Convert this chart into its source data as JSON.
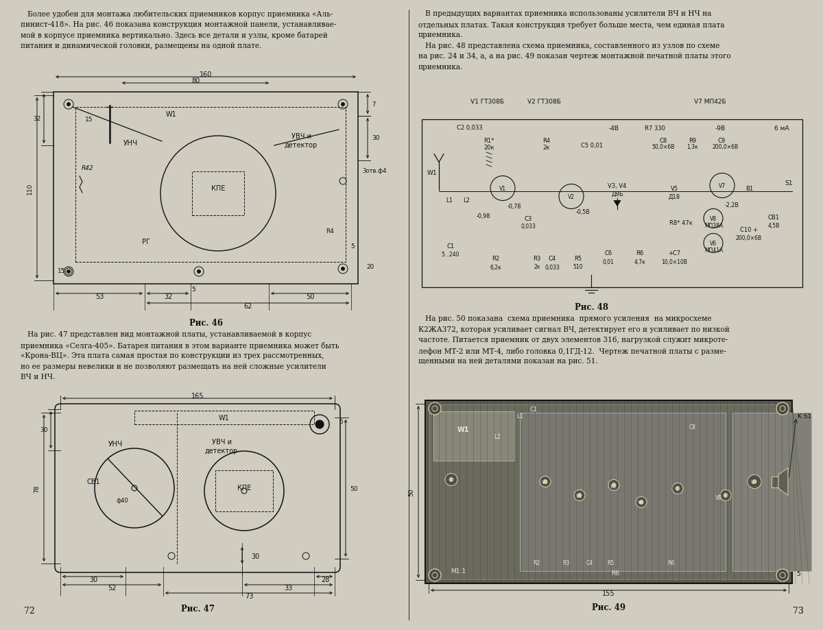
{
  "page_bg": "#d0ccc0",
  "line_color": "#111111",
  "text_color": "#111111",
  "page_num_left": "72",
  "page_num_right": "73",
  "fig46_caption": "Рис. 46",
  "fig47_caption": "Рис. 47",
  "fig48_caption": "Рис. 48",
  "fig49_caption": "Рис. 49",
  "top_text_left": [
    "   Более удобен для монтажа любительских приемников корпус приемника «Аль-",
    "пинист-418». На рис. 46 показана конструкция монтажной панели, устанавливае-",
    "мой в корпусе приемника вертикально. Здесь все детали и узлы, кроме батарей",
    "питания и динамической головки, размещены на одной плате."
  ],
  "top_text_right": [
    "   В предыдущих вариантах приемника использованы усилители ВЧ и НЧ на",
    "отдельных платах. Такая конструкция требует больше места, чем единая плата",
    "приемника.",
    "   На рис. 48 представлена схема приемника, составленного из узлов по схеме",
    "на рис. 24 и 34, а, а на рис. 49 показан чертеж монтажной печатной платы этого",
    "приемника."
  ],
  "mid_text_left": [
    "   На рис. 47 представлен вид монтажной платы, устанавливаемой в корпус",
    "приемника «Селга-405». Батарея питания в этом варианте приемника может быть",
    "«Крона-ВЦ». Эта плата самая простая по конструкции из трех рассмотренных,",
    "но ее размеры невелики и не позволяют размещать на ней сложные усилители",
    "ВЧ и НЧ."
  ],
  "mid_text_right": [
    "   На рис. 50 показана  схема приемника  прямого усиления  на микросхеме",
    "К2ЖА372, которая усиливает сигнал ВЧ, детектирует его и усиливает по низкой",
    "частоте. Питается приемник от двух элементов 316, нагрузкой служит микроте-",
    "лефон МТ-2 или МТ-4, либо головка 0,1ГД-12.  Чертеж печатной платы с разме-",
    "щенными на ней деталями показан на рис. 51."
  ]
}
